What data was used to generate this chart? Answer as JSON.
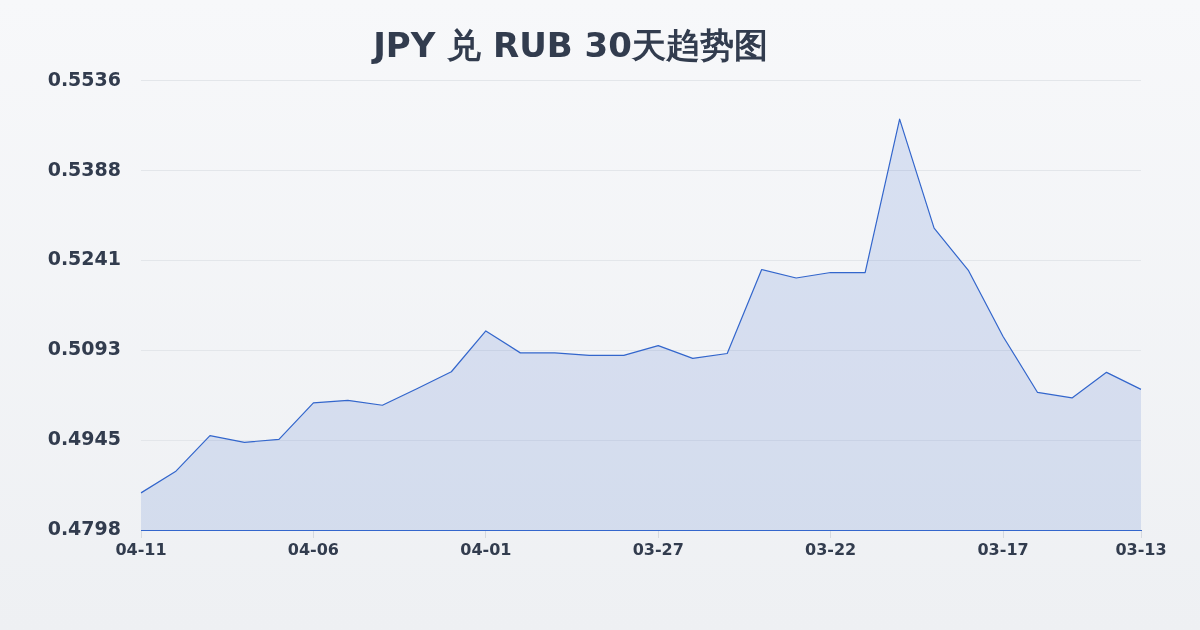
{
  "chart_data": {
    "type": "area",
    "title": "JPY 兑 RUB 30天趋势图",
    "categories": [
      "04-11",
      null,
      null,
      null,
      null,
      "04-06",
      null,
      null,
      null,
      null,
      "04-01",
      null,
      null,
      null,
      null,
      "03-27",
      null,
      null,
      null,
      null,
      "03-22",
      null,
      null,
      null,
      null,
      "03-17",
      null,
      null,
      null,
      "03-13"
    ],
    "values": [
      0.4859,
      0.4894,
      0.4953,
      0.4942,
      0.4947,
      0.5007,
      0.5011,
      0.5003,
      0.503,
      0.5058,
      0.5125,
      0.5089,
      0.5089,
      0.5085,
      0.5085,
      0.5101,
      0.508,
      0.5088,
      0.5226,
      0.5212,
      0.5221,
      0.5221,
      0.5473,
      0.5294,
      0.5224,
      0.5116,
      0.5024,
      0.5015,
      0.5057,
      0.5029
    ],
    "color": "#3366cc",
    "ylim": [
      0.4798,
      0.5536
    ],
    "yticks": [
      0.4798,
      0.4945,
      0.5093,
      0.5241,
      0.5388,
      0.5536
    ],
    "grid": "y",
    "legend": false,
    "marker": "none"
  }
}
